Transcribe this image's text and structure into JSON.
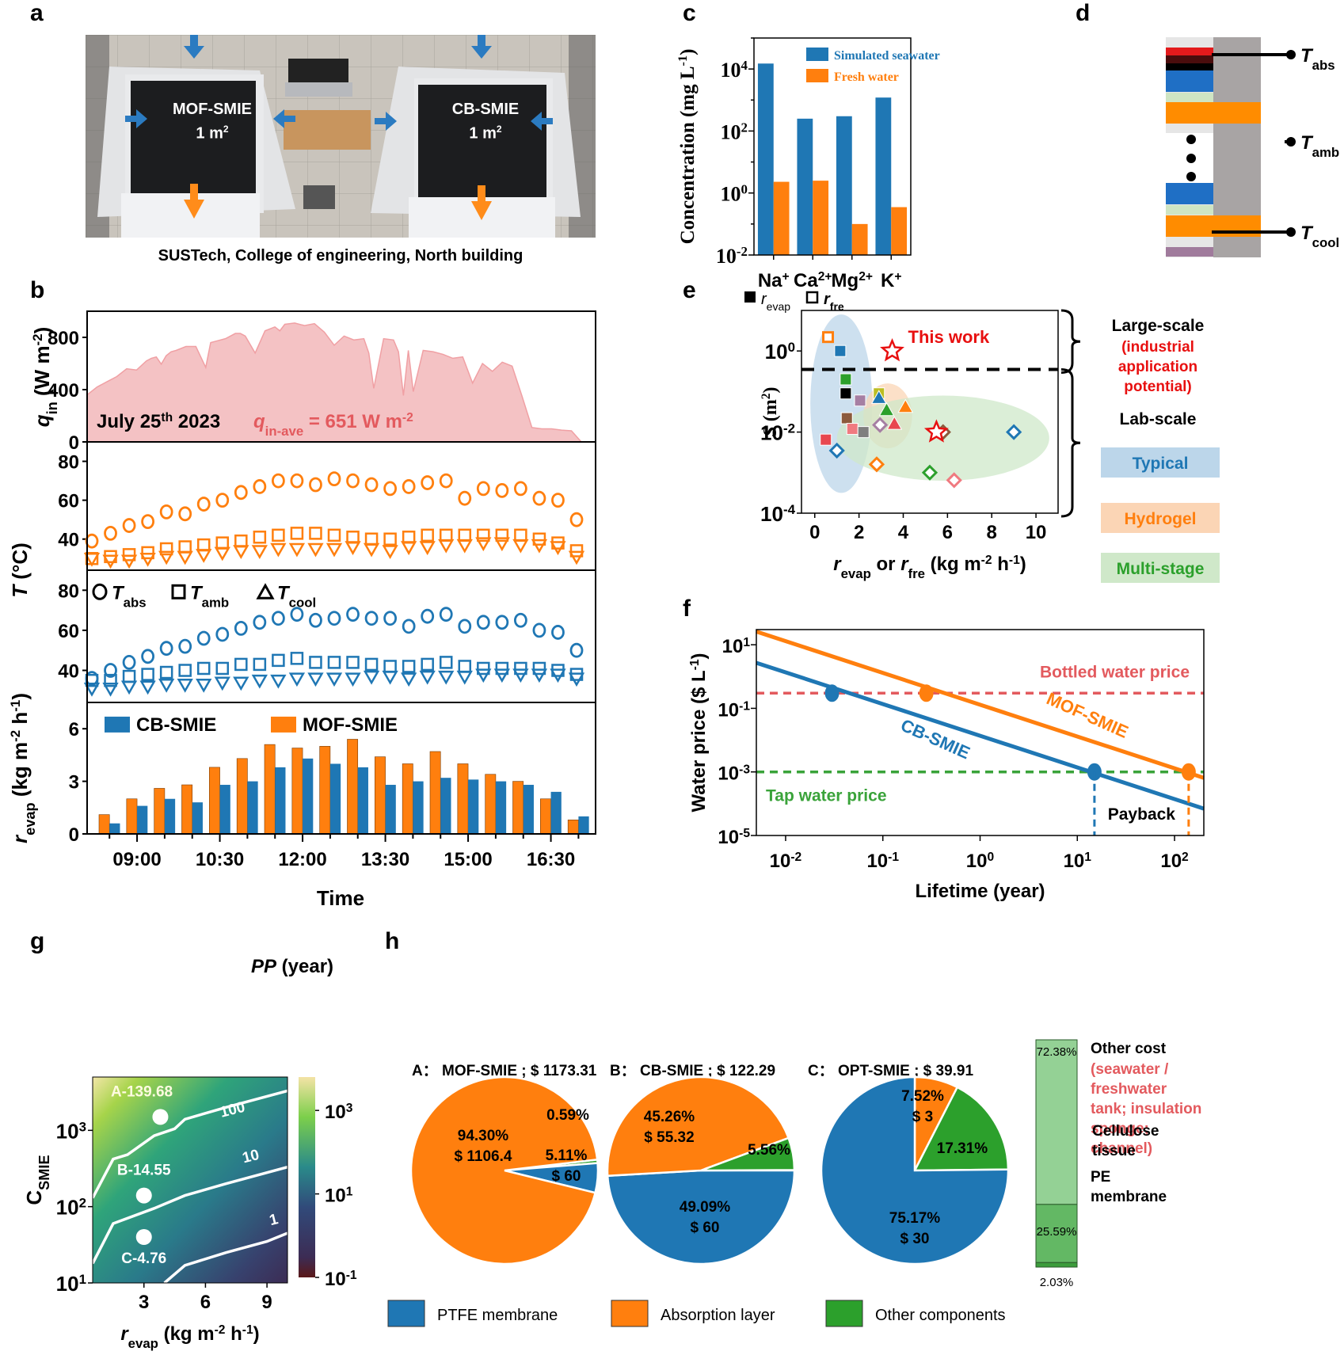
{
  "panel_labels": {
    "a": "a",
    "b": "b",
    "c": "c",
    "d": "d",
    "e": "e",
    "f": "f",
    "g": "g",
    "h": "h"
  },
  "panel_a": {
    "left_label": "MOF-SMIE",
    "left_area": "1 m",
    "right_label": "CB-SMIE",
    "right_area": "1 m",
    "area_sup": "2",
    "caption": "SUSTech, College of engineering, North building"
  },
  "panel_d": {
    "labels": [
      {
        "main": "T",
        "sub": "abs"
      },
      {
        "main": "T",
        "sub": "amb"
      },
      {
        "main": "T",
        "sub": "cool"
      }
    ],
    "colors": {
      "absorber_top": "#e31a1c",
      "absorber_bottom": "#000000",
      "ptfe": "#1f6fc5",
      "gap": "#cfe5c3",
      "condenser": "#ff8c00",
      "spacer": "#e6e6e6",
      "frame": "#a8a4a4",
      "cooler": "#a07b9c"
    }
  },
  "colors": {
    "blue": "#1f77b4",
    "orange": "#ff7f0e",
    "green": "#2ca02c",
    "red": "#e8474f",
    "pink_fill": "#f4c2c4",
    "bottled": "#e35a5e",
    "tap": "#3aa33a"
  },
  "chart_data": [
    {
      "id": "c",
      "type": "bar",
      "title": "",
      "xlabel": "",
      "ylabel": "Concentration (mg L-1)",
      "yscale": "log",
      "ylim": [
        0.01,
        100000
      ],
      "yticks": [
        "10^-2",
        "10^0",
        "10^2",
        "10^4"
      ],
      "categories": [
        "Na+",
        "Ca2+",
        "Mg2+",
        "K+"
      ],
      "category_parts": [
        {
          "base": "Na",
          "sup": "+"
        },
        {
          "base": "Ca",
          "sup": "2+"
        },
        {
          "base": "Mg",
          "sup": "2+"
        },
        {
          "base": "K",
          "sup": "+"
        }
      ],
      "series": [
        {
          "name": "Simulated seawater",
          "color": "#1f77b4",
          "values": [
            15000,
            250,
            300,
            1200
          ]
        },
        {
          "name": "Fresh water",
          "color": "#ff7f0e",
          "values": [
            2.3,
            2.5,
            0.1,
            0.35
          ]
        }
      ],
      "legend": "top-right"
    },
    {
      "id": "b",
      "type": "area",
      "title": "",
      "date_label": "July 25",
      "date_sup": "th",
      "date_year": " 2023",
      "avg_label": "q",
      "avg_sub": "in-ave",
      "avg_value": " = 651 W m",
      "avg_sup": "-2",
      "qin": {
        "ylabel": "qin (W m-2)",
        "ylim": [
          0,
          1000
        ],
        "yticks": [
          0,
          400,
          800
        ],
        "x": [
          0,
          2,
          4,
          6,
          8,
          10,
          12,
          13,
          14,
          15,
          16,
          17,
          18,
          20,
          22,
          24,
          25,
          26,
          28,
          30,
          31,
          32,
          34,
          36,
          38,
          39,
          40,
          42,
          44,
          46,
          48,
          50,
          52,
          54,
          56,
          57,
          58,
          60,
          62,
          63,
          64,
          65,
          66,
          68,
          70,
          72,
          74,
          76,
          78,
          80,
          82,
          84,
          86,
          88,
          90,
          92,
          94,
          96,
          98,
          100
        ],
        "y": [
          360,
          420,
          460,
          500,
          560,
          550,
          620,
          640,
          650,
          595,
          660,
          690,
          700,
          730,
          730,
          570,
          760,
          770,
          790,
          830,
          830,
          810,
          680,
          850,
          880,
          850,
          900,
          910,
          890,
          905,
          840,
          740,
          810,
          780,
          790,
          680,
          410,
          790,
          780,
          690,
          355,
          700,
          385,
          700,
          690,
          670,
          640,
          650,
          450,
          600,
          540,
          610,
          580,
          350,
          110,
          100,
          100,
          90,
          85,
          0
        ],
        "color": "#f4c2c4"
      },
      "temp": {
        "ylabel": "T (°C)",
        "ylim": [
          24,
          90
        ],
        "yticks": [
          40,
          60,
          80
        ],
        "legend": [
          {
            "symbol": "circle",
            "label": "T",
            "sub": "abs"
          },
          {
            "symbol": "square",
            "label": "T",
            "sub": "amb"
          },
          {
            "symbol": "triangle",
            "label": "T",
            "sub": "cool"
          }
        ],
        "mof": {
          "Tabs": [
            39,
            43,
            47,
            49,
            54,
            53,
            58,
            60,
            64,
            67,
            70,
            70,
            68,
            71,
            70,
            68,
            66,
            67,
            69,
            70,
            61,
            66,
            65,
            66,
            61,
            60,
            50
          ],
          "Tamb": [
            30,
            31,
            32,
            33,
            35,
            36,
            37,
            38,
            39,
            41,
            42,
            43,
            43,
            42,
            41,
            40,
            40,
            41,
            42,
            42,
            42,
            42,
            42,
            42,
            40,
            38,
            34
          ],
          "Tcool": [
            30,
            29,
            29,
            30,
            31,
            31,
            32,
            33,
            34,
            34,
            35,
            35,
            35,
            35,
            36,
            35,
            34,
            36,
            36,
            37,
            37,
            38,
            38,
            37,
            37,
            36,
            31
          ]
        },
        "cb": {
          "Tabs": [
            36,
            40,
            44,
            47,
            51,
            52,
            56,
            58,
            61,
            64,
            66,
            68,
            65,
            66,
            68,
            66,
            66,
            62,
            67,
            68,
            62,
            64,
            64,
            65,
            60,
            59,
            50
          ],
          "Tamb": [
            35,
            35,
            37,
            38,
            39,
            40,
            41,
            41,
            43,
            43,
            45,
            46,
            44,
            44,
            44,
            43,
            42,
            42,
            43,
            44,
            42,
            41,
            41,
            41,
            41,
            40,
            38
          ],
          "Tcool": [
            31,
            31,
            32,
            32,
            33,
            33,
            33,
            34,
            34,
            35,
            35,
            36,
            36,
            36,
            36,
            37,
            37,
            36,
            37,
            37,
            37,
            38,
            38,
            38,
            38,
            38,
            36
          ]
        }
      },
      "evap": {
        "ylabel": "revap (kg m-2 h-1)",
        "ylim": [
          0,
          7.5
        ],
        "yticks": [
          0,
          3,
          6
        ],
        "legend": [
          "CB-SMIE",
          "MOF-SMIE"
        ],
        "MOF-SMIE": [
          1.1,
          2.0,
          2.6,
          2.8,
          3.8,
          4.3,
          5.1,
          4.9,
          5.0,
          5.4,
          4.4,
          4.0,
          4.7,
          4.0,
          3.4,
          3.0,
          2.0,
          0.8
        ],
        "CB-SMIE": [
          0.6,
          1.6,
          2.0,
          1.8,
          2.8,
          3.0,
          3.8,
          4.3,
          4.0,
          3.8,
          2.8,
          3.0,
          3.2,
          3.1,
          3.0,
          2.8,
          2.4,
          1.0
        ]
      },
      "xlabel": "Time",
      "xticks": [
        "09:00",
        "10:30",
        "12:00",
        "13:30",
        "15:00",
        "16:30"
      ]
    },
    {
      "id": "e",
      "type": "scatter",
      "xlabel_parts": {
        "a": "r",
        "a_sub": "evap",
        "mid": " or ",
        "b": "r",
        "b_sub": "fre",
        "unit": " (kg m",
        "u1": "-2",
        "unit2": " h",
        "u2": "-1",
        "end": ")"
      },
      "ylabel": "S (m2)",
      "xlim": [
        -0.6,
        11
      ],
      "xticks": [
        0,
        2,
        4,
        6,
        8,
        10
      ],
      "yscale": "log",
      "ylim": [
        0.0001,
        10
      ],
      "yticks": [
        "10^-4",
        "10^-2",
        "10^0"
      ],
      "legend": [
        {
          "symbol": "filled-square",
          "label": "r",
          "sub": "evap"
        },
        {
          "symbol": "open-square",
          "label": "r",
          "sub": "fre"
        }
      ],
      "threshold_S": 0.35,
      "annotation": "This work",
      "this_work": [
        {
          "x": 3.5,
          "y": 1.0,
          "label": "r_fre"
        },
        {
          "x": 5.5,
          "y": 0.01,
          "label": "r_evap"
        }
      ],
      "regions": [
        {
          "name": "Typical",
          "cx": 1.2,
          "cy_log": -1.3,
          "rx": 1.4,
          "ry_log": 2.2,
          "color": "#bcd6ea"
        },
        {
          "name": "Hydrogel",
          "cx": 3.3,
          "cy_log": -1.6,
          "rx": 1.1,
          "ry_log": 0.8,
          "color": "#fbd5b5"
        },
        {
          "name": "Multi-stage",
          "cx": 5.8,
          "cy_log": -2.15,
          "rx": 4.8,
          "ry_log": 1.05,
          "color": "#cfe8c9"
        }
      ],
      "points": [
        {
          "x": 0.6,
          "y": 2.2,
          "marker": "open-square",
          "color": "#ff7f0e"
        },
        {
          "x": 1.15,
          "y": 1.0,
          "marker": "square",
          "color": "#1f77b4"
        },
        {
          "x": 1.4,
          "y": 0.2,
          "marker": "square",
          "color": "#2ca02c"
        },
        {
          "x": 1.4,
          "y": 0.09,
          "marker": "square",
          "color": "#000000"
        },
        {
          "x": 2.05,
          "y": 0.06,
          "marker": "square",
          "color": "#a67fa3"
        },
        {
          "x": 1.45,
          "y": 0.022,
          "marker": "square",
          "color": "#8c5a3c"
        },
        {
          "x": 1.7,
          "y": 0.012,
          "marker": "square",
          "color": "#f07a80"
        },
        {
          "x": 2.2,
          "y": 0.01,
          "marker": "square",
          "color": "#7f7f7f"
        },
        {
          "x": 0.5,
          "y": 0.0065,
          "marker": "square",
          "color": "#e8474f"
        },
        {
          "x": 2.9,
          "y": 0.09,
          "marker": "square",
          "color": "#bcbd22"
        },
        {
          "x": 2.9,
          "y": 0.07,
          "marker": "triangle",
          "color": "#1f77b4"
        },
        {
          "x": 3.25,
          "y": 0.035,
          "marker": "triangle",
          "color": "#2ca02c"
        },
        {
          "x": 4.1,
          "y": 0.042,
          "marker": "triangle",
          "color": "#ff7f0e"
        },
        {
          "x": 3.6,
          "y": 0.016,
          "marker": "triangle",
          "color": "#e8474f"
        },
        {
          "x": 2.95,
          "y": 0.015,
          "marker": "diamond",
          "color": "#a67fa3"
        },
        {
          "x": 1.0,
          "y": 0.0035,
          "marker": "diamond",
          "color": "#1f77b4"
        },
        {
          "x": 2.8,
          "y": 0.0016,
          "marker": "diamond",
          "color": "#ff7f0e"
        },
        {
          "x": 5.2,
          "y": 0.001,
          "marker": "diamond",
          "color": "#2ca02c"
        },
        {
          "x": 6.3,
          "y": 0.00065,
          "marker": "diamond",
          "color": "#f07a80"
        },
        {
          "x": 5.8,
          "y": 0.01,
          "marker": "diamond",
          "color": "#8c5a3c"
        },
        {
          "x": 9.0,
          "y": 0.01,
          "marker": "diamond",
          "color": "#1f77b4"
        }
      ],
      "side_labels": {
        "large_scale": "Large-scale",
        "industrial": [
          "(industrial",
          "application",
          "potential)"
        ],
        "lab_scale": "Lab-scale",
        "typical": "Typical",
        "hydrogel": "Hydrogel",
        "multistage": "Multi-stage"
      }
    },
    {
      "id": "f",
      "type": "line",
      "xlabel": "Lifetime (year)",
      "ylabel": "Water price ($ L-1)",
      "xscale": "log",
      "xlim": [
        0.005,
        200
      ],
      "xticks": [
        "10^-2",
        "10^-1",
        "10^0",
        "10^1",
        "10^2"
      ],
      "yscale": "log",
      "ylim": [
        1e-05,
        30
      ],
      "yticks": [
        "10^-5",
        "10^-3",
        "10^-1",
        "10^1"
      ],
      "series": [
        {
          "name": "MOF-SMIE",
          "color": "#ff7f0e",
          "x": [
            0.005,
            200
          ],
          "y": [
            26,
            0.00065
          ]
        },
        {
          "name": "CB-SMIE",
          "color": "#1f77b4",
          "x": [
            0.005,
            200
          ],
          "y": [
            2.7,
            7e-05
          ]
        }
      ],
      "reference_lines": [
        {
          "name": "Bottled water price",
          "y": 0.3,
          "color": "#e35a5e"
        },
        {
          "name": "Tap water price",
          "y": 0.001,
          "color": "#3aa33a"
        }
      ],
      "markers": [
        {
          "series": "CB-SMIE",
          "x": 0.03,
          "y": 0.3
        },
        {
          "series": "MOF-SMIE",
          "x": 0.28,
          "y": 0.3
        },
        {
          "series": "CB-SMIE",
          "x": 15,
          "y": 0.001
        },
        {
          "series": "MOF-SMIE",
          "x": 139.68,
          "y": 0.001
        }
      ],
      "annotation": "Payback"
    },
    {
      "id": "g",
      "type": "heatmap",
      "xlabel": "revap (kg m-2 h-1)",
      "ylabel": "CSMIE",
      "colorbar_label": "PP (year)",
      "xlim": [
        0.5,
        10
      ],
      "xticks": [
        3,
        6,
        9
      ],
      "yscale": "log",
      "ylim": [
        10,
        5000
      ],
      "yticks": [
        "10^1",
        "10^2",
        "10^3"
      ],
      "colorbar_ticks": [
        "10^-1",
        "10^1",
        "10^3"
      ],
      "contours": [
        {
          "level": 100,
          "label": "100",
          "x": [
            0.5,
            1.5,
            2.2,
            3.5,
            4.5,
            5,
            7,
            10
          ],
          "y": [
            130,
            420,
            480,
            850,
            1050,
            1400,
            2000,
            3300
          ]
        },
        {
          "level": 10,
          "label": "10",
          "x": [
            0.5,
            1.5,
            3.5,
            5,
            7,
            10
          ],
          "y": [
            18,
            60,
            95,
            140,
            200,
            330
          ]
        },
        {
          "level": 1,
          "label": "1",
          "x": [
            4,
            5,
            7,
            9,
            10
          ],
          "y": [
            10,
            17,
            25,
            35,
            45
          ]
        }
      ],
      "points": [
        {
          "label": "A-139.68",
          "x": 3.8,
          "y": 1500
        },
        {
          "label": "B-14.55",
          "x": 3.0,
          "y": 140
        },
        {
          "label": "C-4.76",
          "x": 3.0,
          "y": 40
        }
      ]
    },
    {
      "id": "h",
      "type": "pie",
      "pies": [
        {
          "title": "A： MOF-SMIE ; $ 1173.31",
          "slices": [
            {
              "name": "Absorption layer",
              "percent": 94.3,
              "label1": "94.30%",
              "label2": "$ 1106.4"
            },
            {
              "name": "PTFE membrane",
              "percent": 5.11,
              "label1": "5.11%",
              "label2": "$ 60"
            },
            {
              "name": "Other components",
              "percent": 0.59,
              "label1": "0.59%",
              "label2": ""
            }
          ]
        },
        {
          "title": "B： CB-SMIE ; $ 122.29",
          "slices": [
            {
              "name": "Absorption layer",
              "percent": 45.26,
              "label1": "45.26%",
              "label2": "$ 55.32"
            },
            {
              "name": "PTFE membrane",
              "percent": 49.09,
              "label1": "49.09%",
              "label2": "$ 60"
            },
            {
              "name": "Other components",
              "percent": 5.56,
              "label1": "5.56%",
              "label2": ""
            }
          ]
        },
        {
          "title": "C： OPT-SMIE ; $ 39.91",
          "slices": [
            {
              "name": "Absorption layer",
              "percent": 7.52,
              "label1": "7.52%",
              "label2": "$ 3"
            },
            {
              "name": "PTFE membrane",
              "percent": 75.17,
              "label1": "75.17%",
              "label2": "$ 30"
            },
            {
              "name": "Other components",
              "percent": 17.31,
              "label1": "17.31%",
              "label2": ""
            }
          ]
        }
      ],
      "stack": [
        {
          "name": "Other cost",
          "detail": [
            "(seawater /",
            "freshwater",
            "tank; insulation",
            "sponge;",
            "channel)"
          ],
          "percent": 72.38,
          "label": "72.38%",
          "color": "#94d195"
        },
        {
          "name": "Cellulose tissue",
          "lines": [
            "Cellulose",
            "tissue"
          ],
          "percent": 25.59,
          "label": "25.59%",
          "color": "#63b864"
        },
        {
          "name": "PE membrane",
          "lines": [
            "PE",
            "membrane"
          ],
          "percent": 2.03,
          "label": "2.03%",
          "color": "#3c9c3c"
        }
      ],
      "legend": [
        {
          "name": "PTFE membrane",
          "color": "#1f77b4"
        },
        {
          "name": "Absorption layer",
          "color": "#ff7f0e"
        },
        {
          "name": "Other components",
          "color": "#2ca02c"
        }
      ]
    }
  ]
}
